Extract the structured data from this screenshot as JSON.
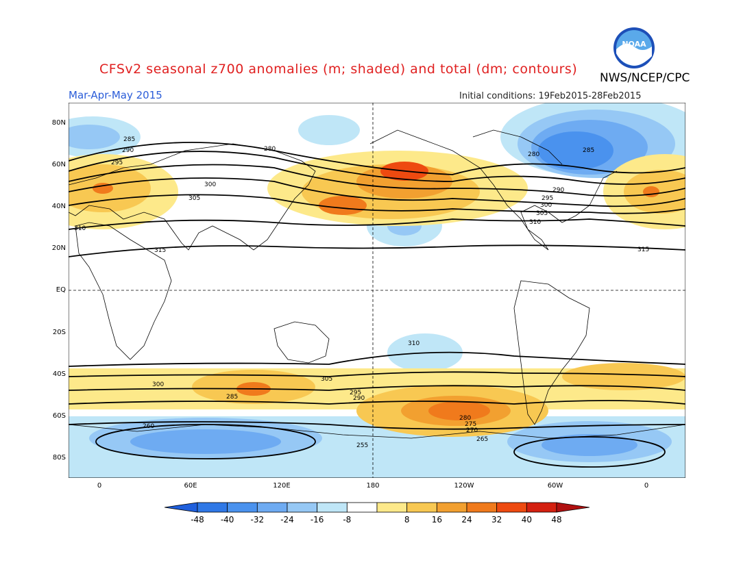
{
  "title": "CFSv2 seasonal z700 anomalies (m; shaded) and total (dm; contours)",
  "organization": "NWS/NCEP/CPC",
  "season": "Mar-Apr-May 2015",
  "initial_conditions": "Initial conditions: 19Feb2015-28Feb2015",
  "logo_text": "NOAA",
  "latitude_labels": [
    "80N",
    "60N",
    "40N",
    "20N",
    "EQ",
    "20S",
    "40S",
    "60S",
    "80S"
  ],
  "longitude_labels": [
    "0",
    "60E",
    "120E",
    "180",
    "120W",
    "60W",
    "0"
  ],
  "colorbar": {
    "labels": [
      "-48",
      "-40",
      "-32",
      "-24",
      "-16",
      "-8",
      "8",
      "16",
      "24",
      "32",
      "40",
      "48"
    ],
    "colors": [
      "#1f5fdc",
      "#2f78e6",
      "#4a92ee",
      "#6eabf2",
      "#96c8f5",
      "#bfe6f7",
      "#ffffff",
      "#fde98a",
      "#f8c852",
      "#f2a030",
      "#f07a1c",
      "#ee4a10",
      "#d42010",
      "#b01010"
    ]
  },
  "contour_labels": [
    "285",
    "290",
    "295",
    "300",
    "305",
    "310",
    "315",
    "280",
    "280",
    "285",
    "290",
    "295",
    "300",
    "305",
    "310",
    "315",
    "310",
    "305",
    "300",
    "295",
    "290",
    "285",
    "280",
    "275",
    "270",
    "265",
    "260",
    "255"
  ],
  "map_colors": {
    "ocean": "#ffffff",
    "coast": "#000000",
    "contour": "#000000"
  }
}
